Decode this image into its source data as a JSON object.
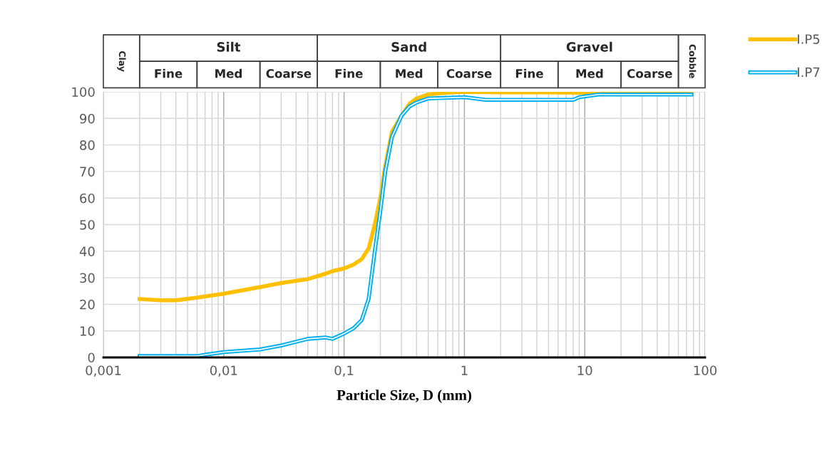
{
  "chart_data": {
    "type": "line",
    "xlabel": "Particle Size, D (mm)",
    "log": "x",
    "grid": true,
    "legend": "top right",
    "marker": "none",
    "line_style": "solid",
    "xlim": [
      0.001,
      100
    ],
    "xticks": [
      {
        "value": 0.001,
        "label": "0,001"
      },
      {
        "value": 0.01,
        "label": "0,01"
      },
      {
        "value": 0.1,
        "label": "0,1"
      },
      1,
      10,
      100
    ],
    "ylim": [
      0,
      100
    ],
    "yticks": [
      0,
      10,
      20,
      30,
      40,
      50,
      60,
      70,
      80,
      90,
      100
    ],
    "annotations": [
      "Clay",
      "Silt",
      "Fine",
      "Med",
      "Coarse",
      "Sand",
      "Fine",
      "Med",
      "Coarse",
      "Gravel",
      "Fine",
      "Med",
      "Coarse",
      "Cobble"
    ],
    "series": [
      {
        "name": "I.P5",
        "color": "#ffc000",
        "x": [
          0.002,
          0.003,
          0.004,
          0.006,
          0.01,
          0.02,
          0.03,
          0.05,
          0.07,
          0.08,
          0.1,
          0.12,
          0.14,
          0.16,
          0.18,
          0.2,
          0.22,
          0.25,
          0.3,
          0.35,
          0.4,
          0.5,
          0.7,
          1,
          2,
          5,
          10,
          20,
          77
        ],
        "values": [
          22,
          21.5,
          21.5,
          22.5,
          24,
          26.5,
          28,
          29.5,
          31.5,
          32.5,
          33.5,
          35,
          37,
          41,
          50,
          60,
          72,
          85,
          91,
          95.5,
          97.5,
          99,
          99.7,
          100,
          99.8,
          99.8,
          99.7,
          99.8,
          99.8
        ]
      },
      {
        "name": "I.P7",
        "color": "#00b0f0",
        "x": [
          0.002,
          0.006,
          0.007,
          0.01,
          0.02,
          0.03,
          0.05,
          0.07,
          0.08,
          0.1,
          0.12,
          0.14,
          0.16,
          0.18,
          0.2,
          0.22,
          0.25,
          0.3,
          0.35,
          0.4,
          0.5,
          1,
          1.5,
          3,
          8,
          9,
          13,
          20,
          77
        ],
        "values": [
          0.5,
          0.5,
          1,
          2,
          3,
          4.5,
          7,
          7.5,
          7,
          9,
          11,
          14,
          22,
          40,
          55,
          70,
          83,
          91,
          94.5,
          96,
          97.5,
          98,
          97,
          97,
          97,
          98,
          99,
          99,
          99
        ]
      }
    ]
  }
}
